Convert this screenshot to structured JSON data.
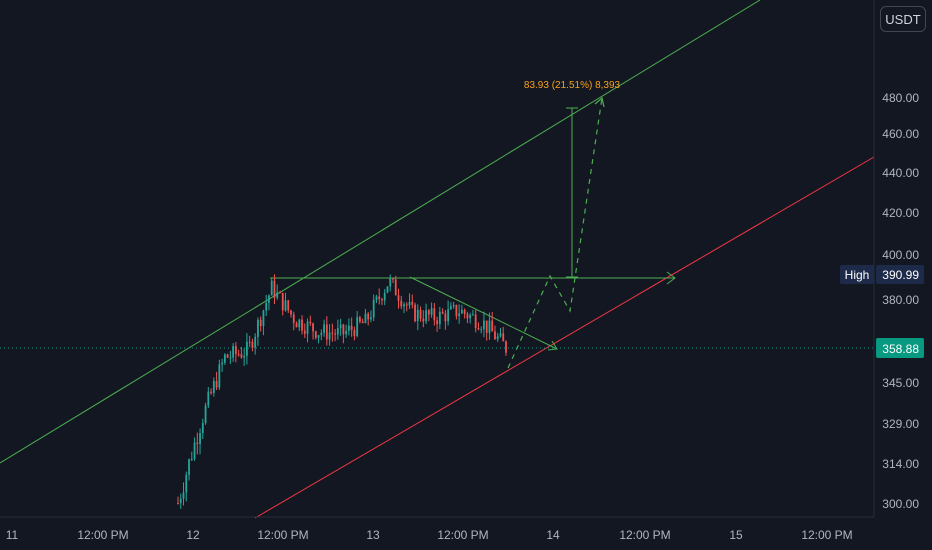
{
  "toolbar": {
    "currency_label": "USDT"
  },
  "price_axis": {
    "ticks": [
      "480.00",
      "460.00",
      "440.00",
      "420.00",
      "400.00",
      "380.00",
      "345.00",
      "329.00",
      "314.00",
      "300.00"
    ],
    "last_price_label": "358.88",
    "high_tag": "High",
    "high_value": "390.99"
  },
  "time_axis": {
    "ticks": [
      "11",
      "12:00 PM",
      "12",
      "12:00 PM",
      "13",
      "12:00 PM",
      "14",
      "12:00 PM",
      "15",
      "12:00 PM"
    ]
  },
  "annotations": {
    "measure_label": "83.93 (21.51%) 8,393"
  },
  "colors": {
    "background": "#131722",
    "up_candle": "#26a69a",
    "down_candle": "#ef5350",
    "channel_upper": "#4caf50",
    "channel_lower": "#f23645",
    "projection": "#4caf50",
    "measure_text": "#f7a21b",
    "last_price_bg": "#089981",
    "high_bg": "#1e2a4a"
  },
  "chart_data": {
    "type": "candlestick",
    "symbol_quote": "USDT",
    "x_range": [
      "11",
      "15 12:00 PM"
    ],
    "y_ticks": [
      300,
      314,
      329,
      345,
      380,
      400,
      420,
      440,
      460,
      480
    ],
    "last_price": 358.88,
    "session_high": 390.99,
    "price_path": [
      {
        "t": "12",
        "close": 300
      },
      {
        "t": "12 03:00",
        "close": 330
      },
      {
        "t": "12 06:00",
        "close": 355
      },
      {
        "t": "12 09:00",
        "close": 358
      },
      {
        "t": "12 12:00 PM",
        "close": 385
      },
      {
        "t": "12 15:00",
        "close": 371
      },
      {
        "t": "12 18:00",
        "close": 366
      },
      {
        "t": "12 21:00",
        "close": 365
      },
      {
        "t": "13",
        "close": 370
      },
      {
        "t": "13 03:00",
        "close": 388
      },
      {
        "t": "13 06:00",
        "close": 374
      },
      {
        "t": "13 09:00",
        "close": 372
      },
      {
        "t": "13 12:00 PM",
        "close": 375
      },
      {
        "t": "13 15:00",
        "close": 370
      },
      {
        "t": "13 18:00",
        "close": 359
      }
    ],
    "measure": {
      "change": 83.93,
      "percent": 21.51,
      "ticks": 8393
    },
    "legend": "none",
    "grid": false
  }
}
